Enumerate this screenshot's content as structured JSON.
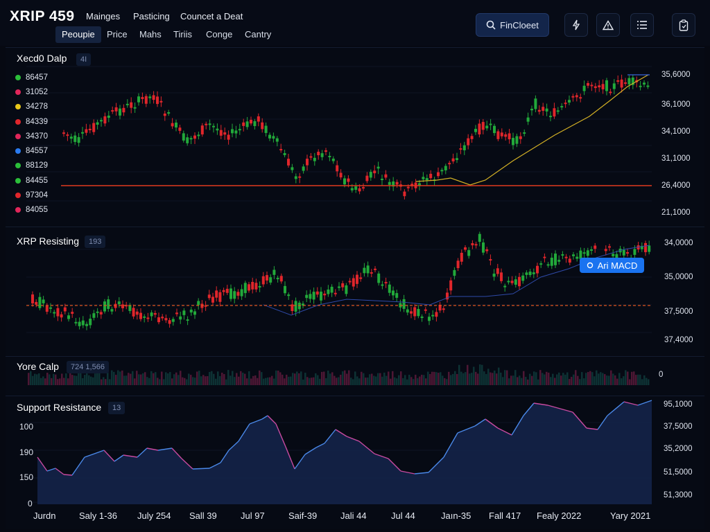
{
  "app": {
    "title": "XRIP 459"
  },
  "menu": [
    "Mainges",
    "Pasticing",
    "Councet a Deat"
  ],
  "tabs": [
    {
      "label": "Peoupie",
      "active": true
    },
    {
      "label": "Price",
      "active": false
    },
    {
      "label": "Mahs",
      "active": false
    },
    {
      "label": "Tiriis",
      "active": false
    },
    {
      "label": "Conge",
      "active": false
    },
    {
      "label": "Cantry",
      "active": false
    }
  ],
  "toolbar": {
    "search_label": "FinCloeet",
    "icons": [
      "search-icon",
      "bolt-icon",
      "warning-icon",
      "list-icon",
      "clipboard-icon"
    ]
  },
  "colors": {
    "up": "#22a93a",
    "down": "#e0262b",
    "accent": "#1a73f0",
    "support": "#e03a1e",
    "ma": "#d4b125"
  },
  "panels": {
    "main": {
      "title": "Xecd0 Dalp",
      "badge": "4I",
      "prices": [
        {
          "value": "86457",
          "color": "#2bbf3a"
        },
        {
          "value": "31052",
          "color": "#e0265a"
        },
        {
          "value": "34278",
          "color": "#e8c81a"
        },
        {
          "value": "84339",
          "color": "#e0262b"
        },
        {
          "value": "34370",
          "color": "#e0265a"
        },
        {
          "value": "84557",
          "color": "#2a7bf0"
        },
        {
          "value": "88129",
          "color": "#2bbf3a"
        },
        {
          "value": "84455",
          "color": "#2bbf3a"
        },
        {
          "value": "97304",
          "color": "#e0262b"
        },
        {
          "value": "84055",
          "color": "#e0265a"
        }
      ],
      "y_labels": [
        "35,6000",
        "36,1000",
        "34,1000",
        "31,1000",
        "26,4000",
        "21,1000"
      ]
    },
    "resisting": {
      "title": "XRP Resisting",
      "badge": "193",
      "y_labels": [
        "34,0000",
        "35,0000",
        "37,5000",
        "37,4000"
      ],
      "macd_label": "Ari MACD",
      "macd_icon": "circle-icon"
    },
    "volume": {
      "title": "Yore Calp",
      "badge": "724 1,566",
      "y_label": "0"
    },
    "support": {
      "title": "Support Resistance",
      "badge": "13",
      "y_labels_right": [
        "95,1000",
        "37,5000",
        "35,2000",
        "51,5000",
        "51,3000"
      ],
      "y_labels_left": [
        "100",
        "190",
        "150",
        "0"
      ]
    }
  },
  "x_axis": [
    "Jurdn",
    "Saly 1-36",
    "July 254",
    "Sall 39",
    "Jul 97",
    "Saif-39",
    "Jali 44",
    "Jul 44",
    "Jaın-35",
    "Fall 417",
    "Fealy 2022",
    "Yary 2021"
  ]
}
